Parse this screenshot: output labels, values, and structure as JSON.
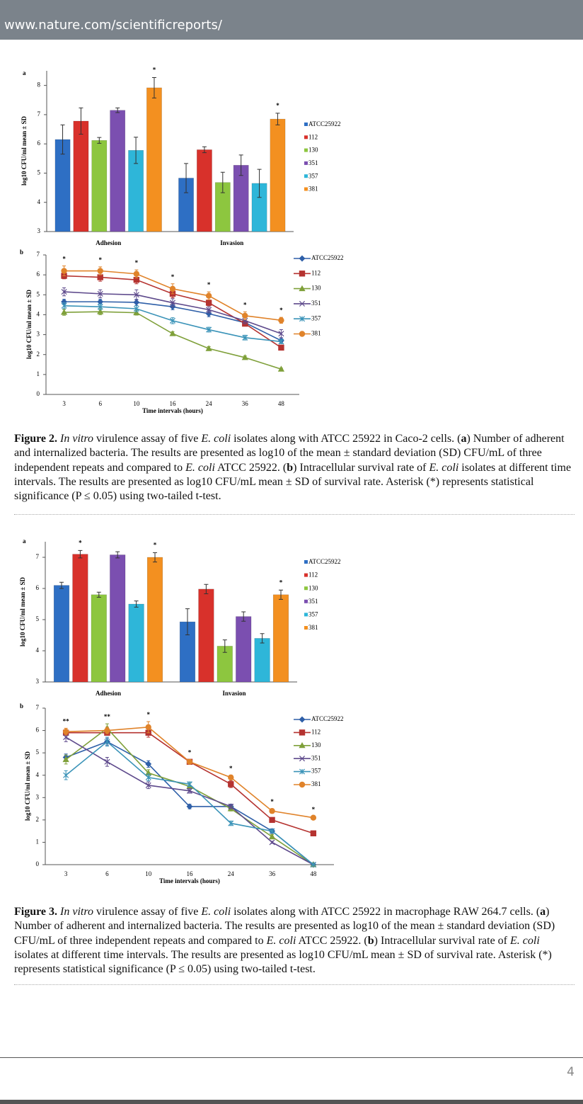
{
  "header": {
    "url": "www.nature.com/scientificreports/"
  },
  "chart_data": [
    {
      "type": "bar",
      "panel": "a",
      "ylabel": "log10 CFU/ml mean ± SD",
      "categories": [
        "Adhesion",
        "Invasion"
      ],
      "ylim": [
        3,
        8.5
      ],
      "yticks": [
        3,
        4,
        5,
        6,
        7,
        8
      ],
      "series": [
        {
          "name": "ATCC25922",
          "color": "#2e6fc4",
          "values": [
            6.15,
            4.83
          ],
          "errors": [
            0.5,
            0.5
          ]
        },
        {
          "name": "112",
          "color": "#d8312b",
          "values": [
            6.78,
            5.8
          ],
          "errors": [
            0.45,
            0.1
          ]
        },
        {
          "name": "130",
          "color": "#8dc63f",
          "values": [
            6.12,
            4.68
          ],
          "errors": [
            0.1,
            0.35
          ]
        },
        {
          "name": "351",
          "color": "#7b4fb0",
          "values": [
            7.15,
            5.27
          ],
          "errors": [
            0.08,
            0.35
          ]
        },
        {
          "name": "357",
          "color": "#2eb6d9",
          "values": [
            5.78,
            4.65
          ],
          "errors": [
            0.45,
            0.48
          ]
        },
        {
          "name": "381",
          "color": "#f39020",
          "values": [
            7.92,
            6.85
          ],
          "errors": [
            0.35,
            0.2
          ],
          "annotations": [
            "*",
            "*"
          ]
        }
      ]
    },
    {
      "type": "line",
      "panel": "b",
      "ylabel": "log10 CFU/ml mean ± SD",
      "xlabel": "Time intervals (hours)",
      "categories": [
        "3",
        "6",
        "10",
        "16",
        "24",
        "36",
        "48"
      ],
      "ylim": [
        0,
        7
      ],
      "yticks": [
        0,
        1,
        2,
        3,
        4,
        5,
        6,
        7
      ],
      "annotations": [
        "*",
        "*",
        "*",
        "*",
        "*",
        "*",
        "*"
      ],
      "series": [
        {
          "name": "ATCC25922",
          "color": "#2e5fa8",
          "marker": "diamond",
          "values": [
            4.65,
            4.65,
            4.62,
            4.4,
            4.05,
            3.6,
            2.7
          ],
          "errors": [
            0.12,
            0.12,
            0.15,
            0.15,
            0.15,
            0.12,
            0.1
          ]
        },
        {
          "name": "112",
          "color": "#b53330",
          "marker": "square",
          "values": [
            5.95,
            5.88,
            5.75,
            5.05,
            4.6,
            3.55,
            2.35
          ],
          "errors": [
            0.15,
            0.2,
            0.2,
            0.2,
            0.15,
            0.12,
            0.1
          ]
        },
        {
          "name": "130",
          "color": "#7fa03a",
          "marker": "triangle",
          "values": [
            4.12,
            4.15,
            4.1,
            3.05,
            2.3,
            1.85,
            1.27
          ],
          "errors": [
            0.15,
            0.15,
            0.12,
            0.1,
            0.1,
            0.08,
            0.05
          ]
        },
        {
          "name": "351",
          "color": "#5e4a8c",
          "marker": "x",
          "values": [
            5.15,
            5.05,
            5.0,
            4.6,
            4.25,
            3.7,
            3.05
          ],
          "errors": [
            0.2,
            0.2,
            0.25,
            0.2,
            0.15,
            0.15,
            0.2
          ]
        },
        {
          "name": "357",
          "color": "#3a93b8",
          "marker": "star",
          "values": [
            4.45,
            4.4,
            4.3,
            3.7,
            3.25,
            2.85,
            2.65
          ],
          "errors": [
            0.15,
            0.15,
            0.15,
            0.15,
            0.12,
            0.12,
            0.1
          ]
        },
        {
          "name": "381",
          "color": "#e0832a",
          "marker": "circle",
          "values": [
            6.2,
            6.2,
            6.05,
            5.3,
            4.95,
            3.95,
            3.72
          ],
          "errors": [
            0.25,
            0.2,
            0.2,
            0.25,
            0.2,
            0.2,
            0.15
          ]
        }
      ]
    },
    {
      "type": "bar",
      "panel": "a",
      "ylabel": "log10 CFU/ml mean ± SD",
      "categories": [
        "Adhesion",
        "Invasion"
      ],
      "ylim": [
        3,
        7.5
      ],
      "yticks": [
        3,
        4,
        5,
        6,
        7
      ],
      "series": [
        {
          "name": "ATCC25922",
          "color": "#2e6fc4",
          "values": [
            6.1,
            4.93
          ],
          "errors": [
            0.1,
            0.42
          ]
        },
        {
          "name": "112",
          "color": "#d8312b",
          "values": [
            7.1,
            5.98
          ],
          "errors": [
            0.12,
            0.15
          ],
          "annotations": [
            "*",
            null
          ]
        },
        {
          "name": "130",
          "color": "#8dc63f",
          "values": [
            5.8,
            4.15
          ],
          "errors": [
            0.08,
            0.2
          ]
        },
        {
          "name": "351",
          "color": "#7b4fb0",
          "values": [
            7.08,
            5.1
          ],
          "errors": [
            0.1,
            0.15
          ]
        },
        {
          "name": "357",
          "color": "#2eb6d9",
          "values": [
            5.5,
            4.4
          ],
          "errors": [
            0.1,
            0.15
          ]
        },
        {
          "name": "381",
          "color": "#f39020",
          "values": [
            7.0,
            5.8
          ],
          "errors": [
            0.15,
            0.15
          ],
          "annotations": [
            "*",
            "*"
          ]
        }
      ]
    },
    {
      "type": "line",
      "panel": "b",
      "ylabel": "log10 CFU/ml mean ± SD",
      "xlabel": "Time intervals (hours)",
      "categories": [
        "3",
        "6",
        "10",
        "16",
        "24",
        "36",
        "48"
      ],
      "ylim": [
        0,
        7
      ],
      "yticks": [
        0,
        1,
        2,
        3,
        4,
        5,
        6,
        7
      ],
      "annotations": [
        "**",
        "**",
        "*",
        "*",
        "*",
        "*",
        "*"
      ],
      "series": [
        {
          "name": "ATCC25922",
          "color": "#2e5fa8",
          "marker": "diamond",
          "values": [
            4.8,
            5.5,
            4.5,
            2.6,
            2.6,
            1.5,
            0
          ],
          "errors": [
            0.15,
            0.15,
            0.15,
            0.1,
            0.1,
            0.1,
            0
          ]
        },
        {
          "name": "112",
          "color": "#b53330",
          "marker": "square",
          "values": [
            5.9,
            5.9,
            5.9,
            4.6,
            3.6,
            2.0,
            1.4
          ],
          "errors": [
            0.1,
            0.1,
            0.2,
            0.1,
            0.15,
            0.05,
            0.05
          ]
        },
        {
          "name": "130",
          "color": "#7fa03a",
          "marker": "triangle",
          "values": [
            4.7,
            6.1,
            4.1,
            3.5,
            2.5,
            1.25,
            0
          ],
          "errors": [
            0.2,
            0.2,
            0.15,
            0.15,
            0.1,
            0.1,
            0
          ]
        },
        {
          "name": "351",
          "color": "#5e4a8c",
          "marker": "x",
          "values": [
            5.7,
            4.6,
            3.55,
            3.3,
            2.6,
            1.0,
            0
          ],
          "errors": [
            0.2,
            0.2,
            0.15,
            0.1,
            0.1,
            0.05,
            0
          ]
        },
        {
          "name": "357",
          "color": "#3a93b8",
          "marker": "star",
          "values": [
            4.0,
            5.5,
            3.9,
            3.6,
            1.85,
            1.5,
            0
          ],
          "errors": [
            0.2,
            0.2,
            0.15,
            0.1,
            0.1,
            0.05,
            0
          ]
        },
        {
          "name": "381",
          "color": "#e0832a",
          "marker": "circle",
          "values": [
            5.95,
            6.0,
            6.15,
            4.6,
            3.9,
            2.4,
            2.1
          ],
          "errors": [
            0.15,
            0.15,
            0.25,
            0.1,
            0.1,
            0.1,
            0.05
          ]
        }
      ]
    }
  ],
  "figures": [
    {
      "caption": [
        "Figure 2.",
        "In vitro",
        "virulence assay of five",
        "E. coli",
        "isolates along with ATCC 25922 in Caco-2 cells. (",
        "a",
        ") Number of adherent and internalized bacteria. The results are presented as log10 of the mean ± standard deviation (SD) CFU/mL of three independent repeats and compared to",
        "E. coli",
        "ATCC 25922. (",
        "b",
        ") Intracellular survival rate of",
        "E. coli",
        "isolates at different time intervals. The results are presented as log10 CFU/mL mean ± SD of survival rate. Asterisk (*) represents statistical significance (P ≤ 0.05) using two-tailed t-test."
      ]
    },
    {
      "caption": [
        "Figure 3.",
        "In vitro",
        "virulence assay of five",
        "E. coli",
        "isolates along with ATCC 25922 in macrophage RAW 264.7 cells. (",
        "a",
        ") Number of adherent and internalized bacteria. The results are presented as log10 of the mean ± standard deviation (SD) CFU/mL of three independent repeats and compared to",
        "E. coli",
        "ATCC 25922. (",
        "b",
        ") Intracellular survival rate of",
        "E. coli",
        "isolates at different time intervals. The results are presented as log10 CFU/mL mean ± SD of survival rate. Asterisk (*) represents statistical significance (P ≤ 0.05) using two-tailed t-test."
      ]
    }
  ],
  "page_number": 4
}
